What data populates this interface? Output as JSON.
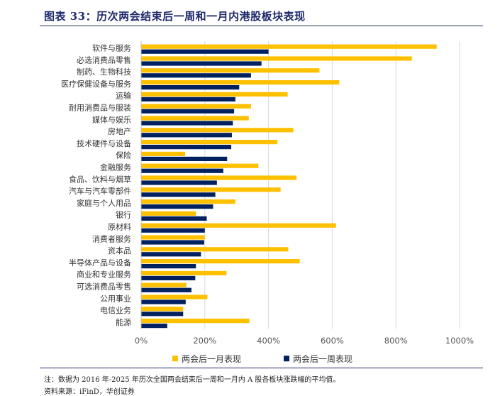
{
  "header": {
    "title": "图表 33：历次两会结束后一周和一月内港股板块表现"
  },
  "chart_data": {
    "type": "bar",
    "orientation": "horizontal",
    "title": "历次两会结束后一周和一月内港股板块表现",
    "categories": [
      "软件与服务",
      "必选消费品零售",
      "制药、生物科技",
      "医疗保健设备与服务",
      "运输",
      "耐用消费品与服装",
      "媒体与娱乐",
      "房地产",
      "技术硬件与设备",
      "保险",
      "金融服务",
      "食品、饮料与烟草",
      "汽车与汽车零部件",
      "家庭与个人用品",
      "银行",
      "原材料",
      "消费者服务",
      "资本品",
      "半导体产品与设备",
      "商业和专业服务",
      "可选消费品零售",
      "公用事业",
      "电信业务",
      "能源"
    ],
    "series": [
      {
        "name": "两会后一月表现",
        "color": "#FFC000",
        "values": [
          928,
          850,
          560,
          622,
          460,
          345,
          338,
          478,
          428,
          138,
          368,
          488,
          438,
          296,
          172,
          612,
          200,
          462,
          498,
          268,
          142,
          208,
          132,
          340
        ]
      },
      {
        "name": "两会后一周表现",
        "color": "#002060",
        "values": [
          400,
          378,
          345,
          308,
          296,
          292,
          288,
          285,
          283,
          270,
          258,
          238,
          233,
          226,
          206,
          200,
          198,
          188,
          172,
          170,
          158,
          140,
          132,
          82
        ]
      }
    ],
    "xlim": [
      0,
      1000
    ],
    "xticks": [
      "0%",
      "200%",
      "400%",
      "600%",
      "800%",
      "1000%"
    ],
    "grid": true,
    "legend": "bottom"
  },
  "footer": {
    "note": "注：数据为 2016 年-2025 年历次全国两会结束后一周和一月内 A 股各板块涨跌幅的平均值。",
    "source": "资料来源：iFinD，华创证券"
  }
}
